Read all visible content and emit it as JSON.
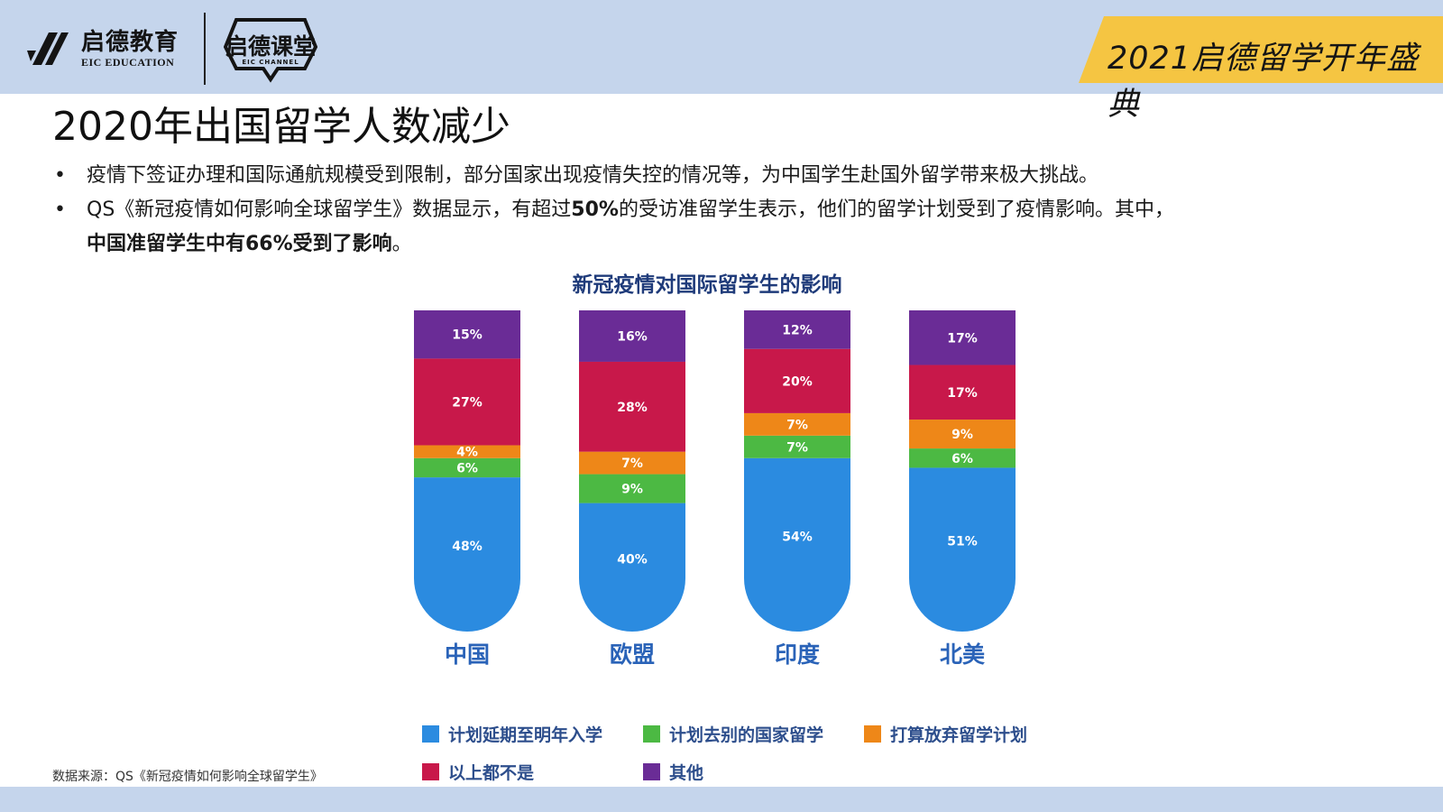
{
  "header": {
    "logo_cn": "启德教育",
    "logo_en": "EIC EDUCATION",
    "channel_cn": "启德课堂",
    "channel_en": "EIC CHANNEL",
    "event_title": "2021启德留学开年盛典"
  },
  "page_title": "2020年出国留学人数减少",
  "bullets": {
    "b1": "疫情下签证办理和国际通航规模受到限制，部分国家出现疫情失控的情况等，为中国学生赴国外留学带来极大挑战。",
    "b2_pre": "QS《新冠疫情如何影响全球留学生》数据显示，有超过",
    "b2_bold": "50%",
    "b2_post": "的受访准留学生表示，他们的留学计划受到了疫情影响。其中，",
    "b3_bold": "中国准留学生中有66%受到了影响",
    "b3_post": "。"
  },
  "source_note": "数据来源：QS《新冠疫情如何影响全球留学生》",
  "colors": {
    "band": "#c5d5ec",
    "banner": "#f5c542",
    "title_blue": "#1f3b7a",
    "axis_blue": "#2a63b8"
  },
  "chart_data": {
    "type": "bar",
    "stacked": true,
    "title": "新冠疫情对国际留学生的影响",
    "categories": [
      "中国",
      "欧盟",
      "印度",
      "北美"
    ],
    "ylim": [
      0,
      100
    ],
    "legend_position": "bottom",
    "series": [
      {
        "name": "计划延期至明年入学",
        "color": "#2b8be0",
        "values": [
          48,
          40,
          54,
          51
        ]
      },
      {
        "name": "计划去别的国家留学",
        "color": "#4cb943",
        "values": [
          6,
          9,
          7,
          6
        ]
      },
      {
        "name": "打算放弃留学计划",
        "color": "#ee8718",
        "values": [
          4,
          7,
          7,
          9
        ]
      },
      {
        "name": "以上都不是",
        "color": "#c8184a",
        "values": [
          27,
          28,
          20,
          17
        ]
      },
      {
        "name": "其他",
        "color": "#6a2c96",
        "values": [
          15,
          16,
          12,
          17
        ]
      }
    ]
  }
}
